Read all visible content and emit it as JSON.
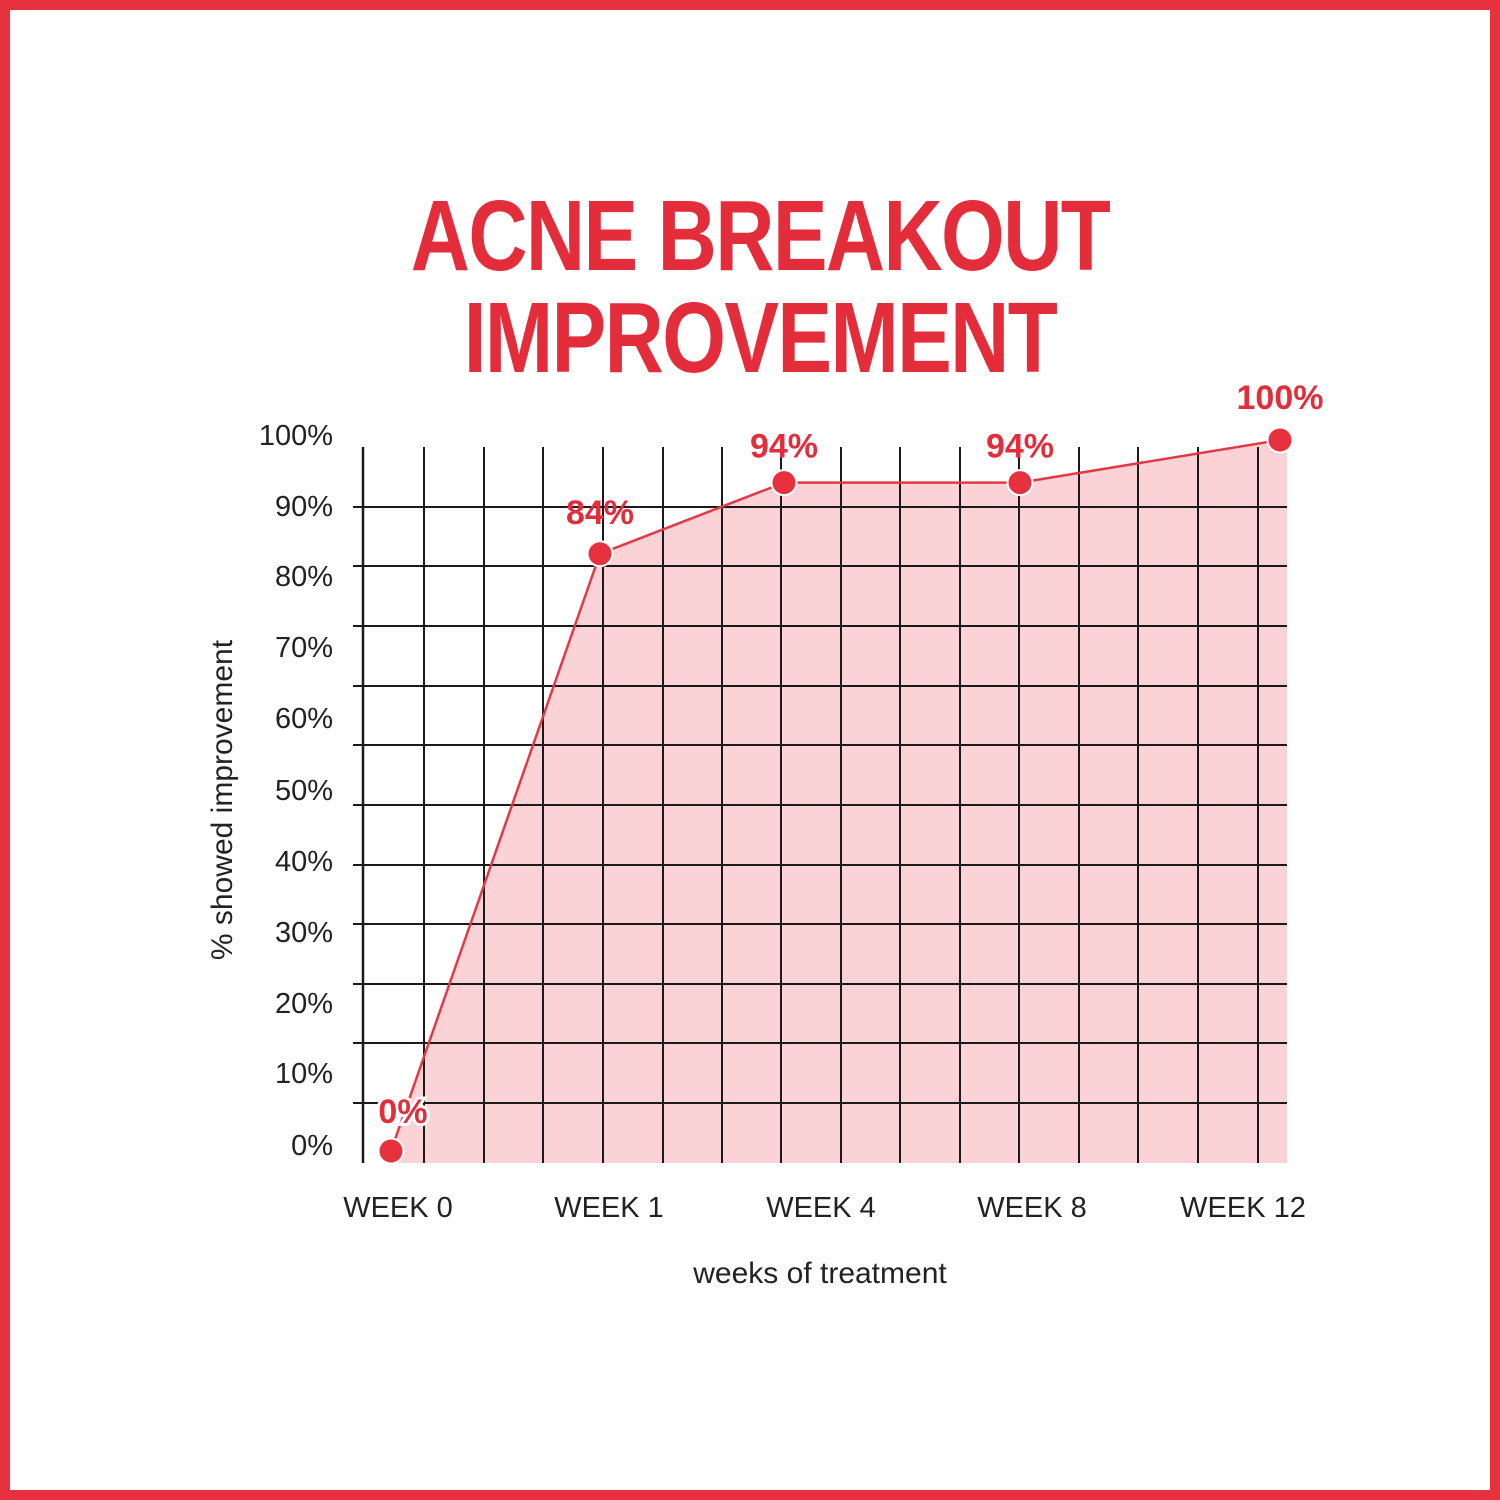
{
  "chart_data": {
    "type": "area",
    "title_lines": [
      "ACNE BREAKOUT",
      "IMPROVEMENT"
    ],
    "categories": [
      "WEEK 0",
      "WEEK 1",
      "WEEK 4",
      "WEEK 8",
      "WEEK 12"
    ],
    "values": [
      0,
      84,
      94,
      94,
      100
    ],
    "data_labels": [
      "0%",
      "84%",
      "94%",
      "94%",
      "100%"
    ],
    "y_ticks": [
      "0%",
      "10%",
      "20%",
      "30%",
      "40%",
      "50%",
      "60%",
      "70%",
      "80%",
      "90%",
      "100%"
    ],
    "ylim": [
      0,
      100
    ],
    "xlabel": "weeks of treatment",
    "ylabel": "% showed improvement",
    "grid": true,
    "legend": "none",
    "colors": {
      "frame": "#e8313f",
      "title": "#e42d3b",
      "line": "#e03a47",
      "fill": "#fbd3d6",
      "marker": "#e8313f",
      "grid": "#1a1a1a",
      "text": "#222222"
    }
  }
}
